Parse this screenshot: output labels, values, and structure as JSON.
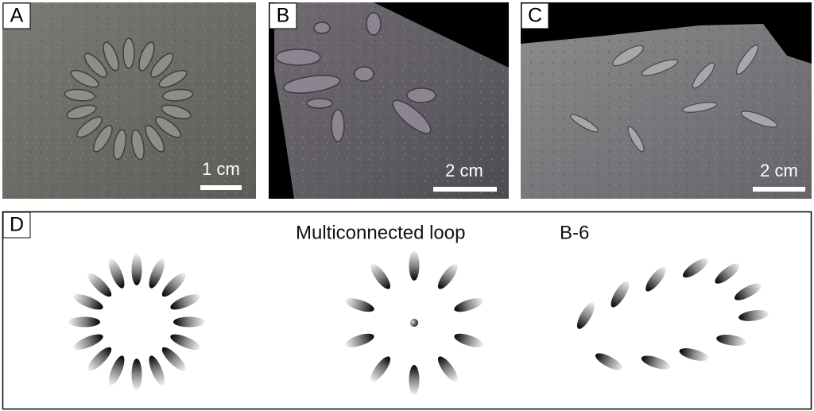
{
  "panels": [
    {
      "label": "A",
      "scale": "1 cm"
    },
    {
      "label": "B",
      "scale": "2 cm"
    },
    {
      "label": "C",
      "scale": "2 cm"
    }
  ],
  "panel_d": {
    "label": "D",
    "title": "Multiconnected loop",
    "subtitle": "B-6"
  }
}
